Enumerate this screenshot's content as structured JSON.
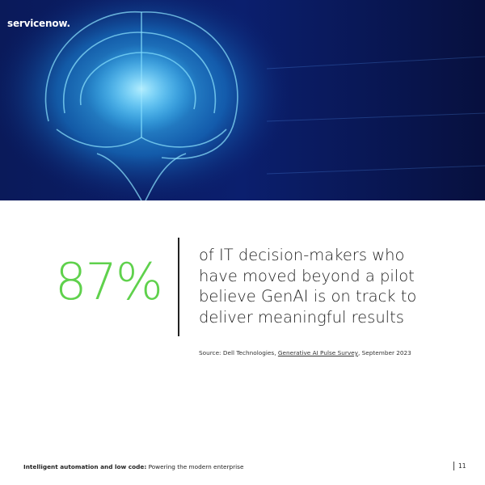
{
  "header": {
    "logo": "servicenow."
  },
  "stat": {
    "value": "87%",
    "lines": [
      "of IT decision-makers who",
      "have moved beyond a pilot",
      "believe GenAI is on track to",
      "deliver meaningful results"
    ]
  },
  "source": {
    "prefix": "Source: Dell Technologies, ",
    "link": "Generative AI Pulse Survey",
    "suffix": ", September 2023"
  },
  "footer": {
    "bold": "Intelligent automation and low code:",
    "rest": " Powering the modern enterprise",
    "page": "11"
  }
}
